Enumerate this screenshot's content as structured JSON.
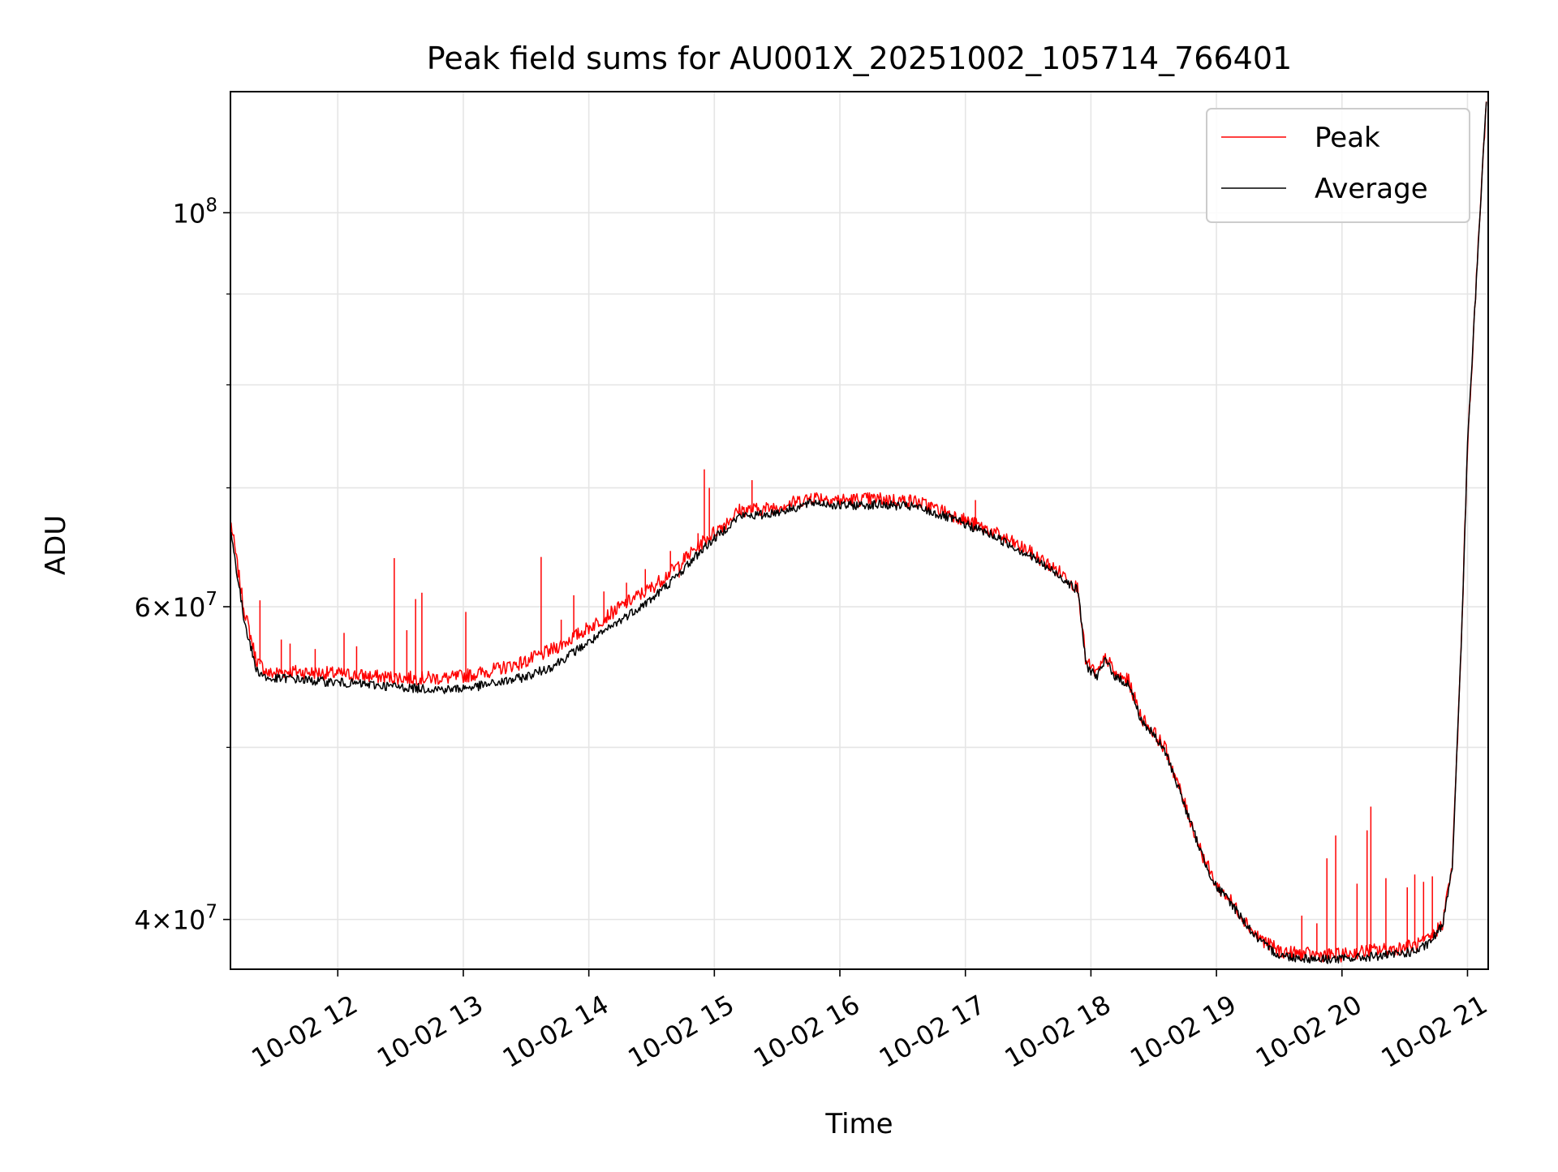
{
  "chart_data": {
    "type": "line",
    "title": "Peak field sums for AU001X_20251002_105714_766401",
    "xlabel": "Time",
    "ylabel": "ADU",
    "yscale": "log",
    "xlim": [
      11.145,
      21.165
    ],
    "ylim": [
      37500000,
      117000000
    ],
    "grid": true,
    "legend_position": "top-right",
    "x_units": "hours since 10-02 00:00",
    "x_ticks": [
      {
        "value": 12,
        "label": "10-02 12"
      },
      {
        "value": 13,
        "label": "10-02 13"
      },
      {
        "value": 14,
        "label": "10-02 14"
      },
      {
        "value": 15,
        "label": "10-02 15"
      },
      {
        "value": 16,
        "label": "10-02 16"
      },
      {
        "value": 17,
        "label": "10-02 17"
      },
      {
        "value": 18,
        "label": "10-02 18"
      },
      {
        "value": 19,
        "label": "10-02 19"
      },
      {
        "value": 20,
        "label": "10-02 20"
      },
      {
        "value": 21,
        "label": "10-02 21"
      }
    ],
    "y_ticks_major": [
      {
        "value": 40000000,
        "base": "4",
        "exp": "7"
      },
      {
        "value": 60000000,
        "base": "6",
        "exp": "7"
      },
      {
        "value": 100000000,
        "base": "10",
        "exp": "8"
      }
    ],
    "y_ticks_minor": [
      50000000,
      70000000,
      80000000,
      90000000
    ],
    "series": [
      {
        "name": "Peak",
        "color": "#ff0000",
        "x": [
          11.15,
          11.25,
          11.35,
          11.45,
          11.6,
          11.8,
          12.0,
          12.3,
          12.6,
          12.9,
          13.1,
          13.3,
          13.5,
          13.7,
          13.9,
          14.1,
          14.3,
          14.5,
          14.7,
          14.9,
          15.1,
          15.2,
          15.4,
          15.6,
          15.8,
          16.0,
          16.3,
          16.6,
          16.9,
          17.2,
          17.5,
          17.8,
          17.9,
          17.96,
          18.05,
          18.12,
          18.2,
          18.3,
          18.4,
          18.5,
          18.6,
          18.7,
          18.8,
          18.9,
          19.0,
          19.1,
          19.2,
          19.3,
          19.4,
          19.5,
          19.6,
          19.8,
          20.0,
          20.2,
          20.4,
          20.6,
          20.7,
          20.8,
          20.88,
          20.95,
          21.0,
          21.05,
          21.1,
          21.15
        ],
        "values": [
          66800000,
          60000000,
          56000000,
          55000000,
          55200000,
          55100000,
          55000000,
          54800000,
          54700000,
          54700000,
          55000000,
          55400000,
          55900000,
          56700000,
          57800000,
          59000000,
          60300000,
          61500000,
          63200000,
          65200000,
          67000000,
          68000000,
          68100000,
          68600000,
          69200000,
          68900000,
          69000000,
          68800000,
          67600000,
          66200000,
          64500000,
          62400000,
          61400000,
          55800000,
          55000000,
          56200000,
          54900000,
          54500000,
          52000000,
          51000000,
          49800000,
          47500000,
          45300000,
          43300000,
          41800000,
          41100000,
          40200000,
          39300000,
          38800000,
          38400000,
          38300000,
          38200000,
          38200000,
          38400000,
          38500000,
          38700000,
          39000000,
          39800000,
          43000000,
          57000000,
          74000000,
          86000000,
          100000000,
          116000000
        ],
        "spikes": [
          {
            "x": 11.38,
            "value": 60500000
          },
          {
            "x": 11.55,
            "value": 57500000
          },
          {
            "x": 11.62,
            "value": 57200000
          },
          {
            "x": 11.82,
            "value": 56800000
          },
          {
            "x": 12.05,
            "value": 58000000
          },
          {
            "x": 12.15,
            "value": 57000000
          },
          {
            "x": 12.45,
            "value": 63900000
          },
          {
            "x": 12.55,
            "value": 58200000
          },
          {
            "x": 12.62,
            "value": 60600000
          },
          {
            "x": 12.67,
            "value": 61100000
          },
          {
            "x": 13.02,
            "value": 59600000
          },
          {
            "x": 13.62,
            "value": 64000000
          },
          {
            "x": 13.78,
            "value": 59000000
          },
          {
            "x": 13.88,
            "value": 60900000
          },
          {
            "x": 14.12,
            "value": 61200000
          },
          {
            "x": 14.3,
            "value": 61900000
          },
          {
            "x": 14.45,
            "value": 63000000
          },
          {
            "x": 14.65,
            "value": 64500000
          },
          {
            "x": 14.72,
            "value": 62300000
          },
          {
            "x": 14.87,
            "value": 66000000
          },
          {
            "x": 14.92,
            "value": 71700000
          },
          {
            "x": 14.96,
            "value": 70000000
          },
          {
            "x": 15.3,
            "value": 70700000
          },
          {
            "x": 15.77,
            "value": 69500000
          },
          {
            "x": 16.55,
            "value": 69200000
          },
          {
            "x": 16.72,
            "value": 68700000
          },
          {
            "x": 17.08,
            "value": 68900000
          },
          {
            "x": 19.68,
            "value": 40200000
          },
          {
            "x": 19.8,
            "value": 39800000
          },
          {
            "x": 19.88,
            "value": 43300000
          },
          {
            "x": 19.95,
            "value": 44600000
          },
          {
            "x": 20.12,
            "value": 41900000
          },
          {
            "x": 20.2,
            "value": 44900000
          },
          {
            "x": 20.23,
            "value": 46300000
          },
          {
            "x": 20.35,
            "value": 42200000
          },
          {
            "x": 20.52,
            "value": 41700000
          },
          {
            "x": 20.58,
            "value": 42400000
          },
          {
            "x": 20.65,
            "value": 42000000
          },
          {
            "x": 20.72,
            "value": 42300000
          }
        ]
      },
      {
        "name": "Average",
        "color": "#000000",
        "x": [
          11.15,
          11.25,
          11.35,
          11.45,
          11.6,
          11.8,
          12.0,
          12.3,
          12.6,
          12.9,
          13.1,
          13.3,
          13.5,
          13.7,
          13.9,
          14.1,
          14.3,
          14.5,
          14.7,
          14.9,
          15.1,
          15.2,
          15.4,
          15.6,
          15.8,
          16.0,
          16.3,
          16.6,
          16.9,
          17.2,
          17.5,
          17.8,
          17.9,
          17.96,
          18.05,
          18.12,
          18.2,
          18.3,
          18.4,
          18.5,
          18.6,
          18.7,
          18.8,
          18.9,
          19.0,
          19.1,
          19.2,
          19.3,
          19.4,
          19.5,
          19.6,
          19.8,
          20.0,
          20.2,
          20.4,
          20.6,
          20.7,
          20.8,
          20.88,
          20.95,
          21.0,
          21.05,
          21.1,
          21.15
        ],
        "values": [
          66000000,
          59200000,
          55300000,
          54600000,
          54700000,
          54500000,
          54400000,
          54200000,
          54000000,
          53900000,
          54100000,
          54400000,
          54800000,
          55500000,
          56700000,
          57900000,
          59300000,
          60600000,
          62400000,
          64600000,
          66500000,
          67500000,
          67600000,
          68100000,
          68700000,
          68400000,
          68500000,
          68300000,
          67200000,
          65900000,
          64200000,
          62100000,
          61200000,
          55600000,
          54800000,
          56000000,
          54700000,
          54300000,
          51800000,
          50800000,
          49600000,
          47400000,
          45200000,
          43200000,
          41700000,
          41000000,
          40100000,
          39200000,
          38600000,
          38200000,
          38100000,
          38000000,
          38000000,
          38100000,
          38200000,
          38400000,
          38800000,
          39700000,
          43000000,
          57000000,
          74000000,
          86000000,
          100000000,
          116000000
        ]
      }
    ]
  }
}
